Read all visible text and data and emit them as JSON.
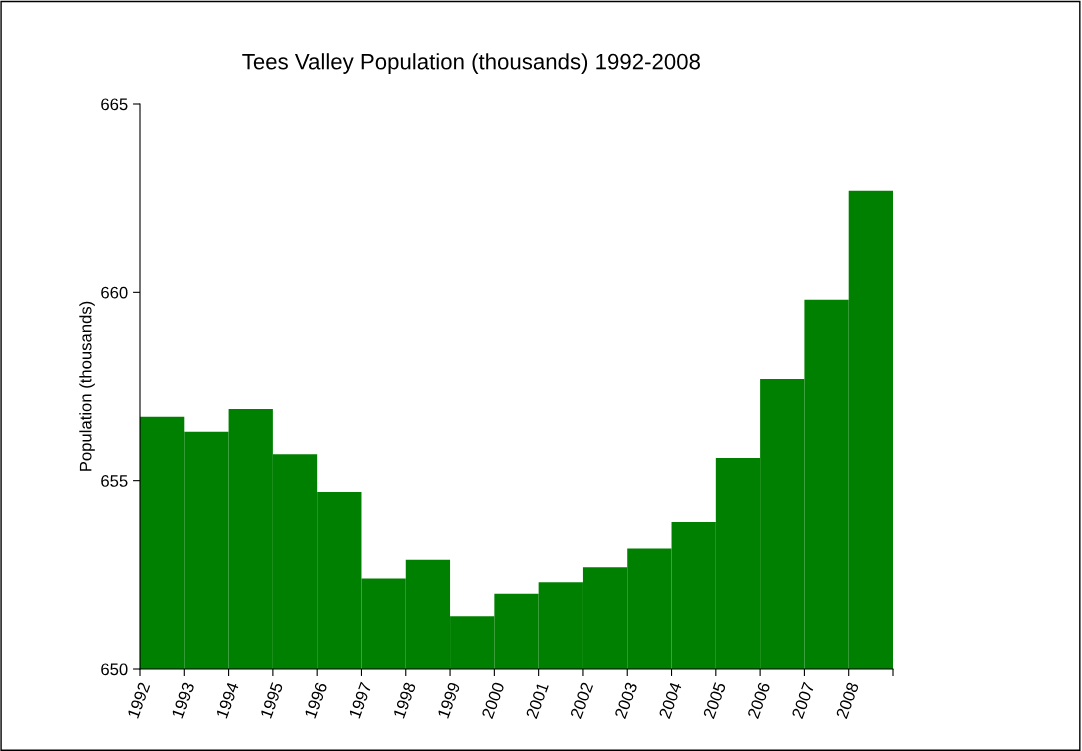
{
  "chart_data": {
    "type": "bar",
    "title": "Tees Valley Population (thousands) 1992-2008",
    "ylabel": "Population (thousands)",
    "categories": [
      "1992",
      "1993",
      "1994",
      "1995",
      "1996",
      "1997",
      "1998",
      "1999",
      "2000",
      "2001",
      "2002",
      "2003",
      "2004",
      "2005",
      "2006",
      "2007",
      "2008"
    ],
    "values": [
      656.7,
      656.3,
      656.9,
      655.7,
      654.7,
      652.4,
      652.9,
      651.4,
      652.0,
      652.3,
      652.7,
      653.2,
      653.9,
      655.6,
      657.7,
      659.8,
      662.7
    ],
    "color": "#008000",
    "ylim": [
      650,
      665
    ],
    "yticks": [
      650,
      655,
      660,
      665
    ],
    "grid": false,
    "legend": false
  }
}
